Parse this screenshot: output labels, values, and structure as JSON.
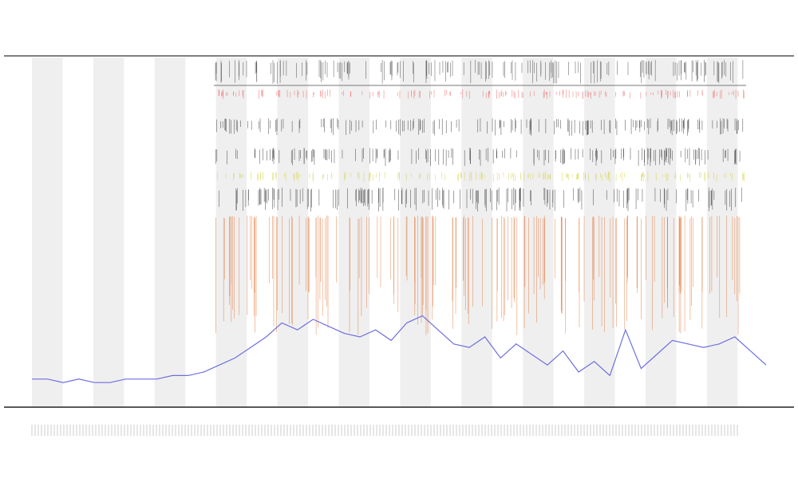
{
  "chart_data": {
    "type": "line",
    "series": [
      {
        "color": "#6f6fe0",
        "values": [
          8,
          8,
          7,
          8,
          7,
          7,
          8,
          8,
          8,
          9,
          9,
          10,
          12,
          14,
          17,
          20,
          24,
          22,
          25,
          23,
          21,
          20,
          22,
          19,
          24,
          26,
          22,
          18,
          17,
          20,
          14,
          18,
          15,
          12,
          16,
          10,
          13,
          9,
          22,
          11,
          15,
          19,
          18,
          17,
          18,
          20,
          16,
          12
        ]
      }
    ],
    "ylim": [
      0,
      100
    ]
  }
}
